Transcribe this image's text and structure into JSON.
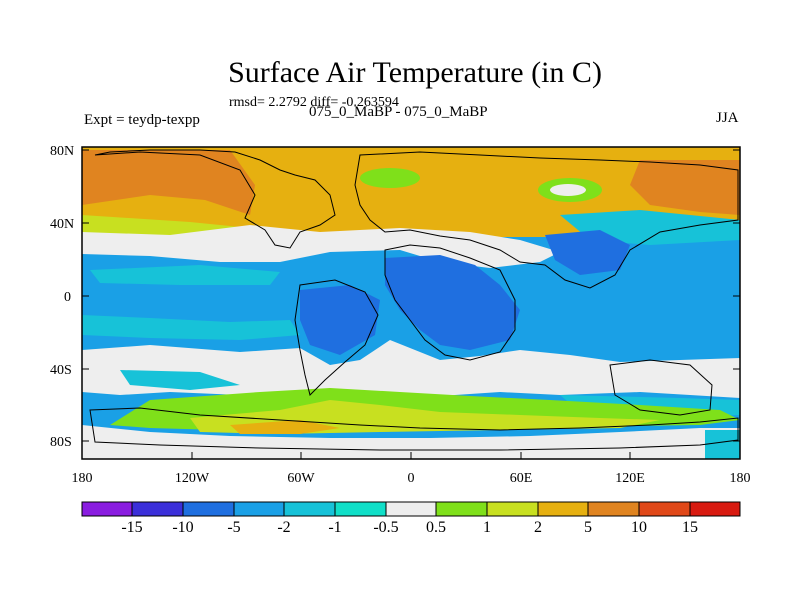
{
  "title": "Surface Air Temperature (in C)",
  "stats": "rmsd= 2.2792 diff= -0.263594",
  "experiment": "Expt = teydp-texpp",
  "subtitle": "075_0_MaBP - 075_0_MaBP",
  "season": "JJA",
  "lat_ticks": [
    "80N",
    "40N",
    "0",
    "40S",
    "80S"
  ],
  "lon_ticks": [
    "180",
    "120W",
    "60W",
    "0",
    "60E",
    "120E",
    "180"
  ],
  "colorbar": {
    "labels": [
      "-15",
      "-10",
      "-5",
      "-2",
      "-1",
      "-0.5",
      "0.5",
      "1",
      "2",
      "5",
      "10",
      "15"
    ],
    "colors": [
      "#8a1de0",
      "#3b2fd9",
      "#1f6fe0",
      "#1aa0e6",
      "#17c2d8",
      "#10dfc8",
      "#eeeeee",
      "#7fe01a",
      "#c8e020",
      "#e6b010",
      "#e08420",
      "#e04818",
      "#d81a10"
    ]
  },
  "palette": {
    "ocean": "#1aa0e6",
    "cold": "#1f6fe0",
    "cyan": "#17c2d8",
    "neutral": "#eeeeee",
    "green": "#7fe01a",
    "yellow": "#c8e020",
    "orange": "#e6b010",
    "warm": "#e08420"
  }
}
